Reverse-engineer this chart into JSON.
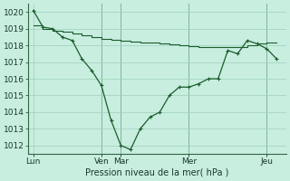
{
  "xlabel": "Pression niveau de la mer( hPa )",
  "bg_color": "#c8eee0",
  "grid_color": "#9ecfba",
  "line_color": "#1a5c2a",
  "ylim": [
    1011.5,
    1020.5
  ],
  "yticks": [
    1012,
    1013,
    1014,
    1015,
    1016,
    1017,
    1018,
    1019,
    1020
  ],
  "xtick_labels": [
    "Lun",
    "Ven",
    "Mar",
    "Mer",
    "Jeu"
  ],
  "xtick_positions": [
    0,
    7,
    9,
    16,
    24
  ],
  "vline_positions": [
    7,
    9,
    16,
    24
  ],
  "xlim": [
    -0.5,
    26
  ],
  "main_x": [
    0,
    1,
    2,
    3,
    4,
    5,
    6,
    7,
    8,
    9,
    10,
    11,
    12,
    13,
    14,
    15,
    16,
    17,
    18,
    19,
    20,
    21,
    22,
    23,
    24,
    25
  ],
  "main_y": [
    1020.1,
    1019.1,
    1019.0,
    1018.5,
    1018.3,
    1017.2,
    1016.5,
    1015.6,
    1013.5,
    1012.0,
    1011.75,
    1013.0,
    1013.7,
    1014.0,
    1015.0,
    1015.5,
    1015.5,
    1015.7,
    1016.0,
    1016.0,
    1017.7,
    1017.5,
    1018.3,
    1018.1,
    1017.8,
    1017.2
  ],
  "smooth_x": [
    0,
    1,
    2,
    3,
    4,
    5,
    6,
    7,
    8,
    9,
    10,
    11,
    12,
    13,
    14,
    15,
    16,
    17,
    18,
    19,
    20,
    21,
    22,
    23,
    24,
    25
  ],
  "smooth_y": [
    1019.2,
    1019.0,
    1018.9,
    1018.8,
    1018.7,
    1018.6,
    1018.5,
    1018.4,
    1018.35,
    1018.3,
    1018.25,
    1018.2,
    1018.15,
    1018.1,
    1018.05,
    1018.0,
    1017.95,
    1017.9,
    1017.9,
    1017.9,
    1017.9,
    1017.9,
    1018.0,
    1018.1,
    1018.15,
    1018.2
  ],
  "font_size": 7,
  "tick_fontsize": 6.5
}
